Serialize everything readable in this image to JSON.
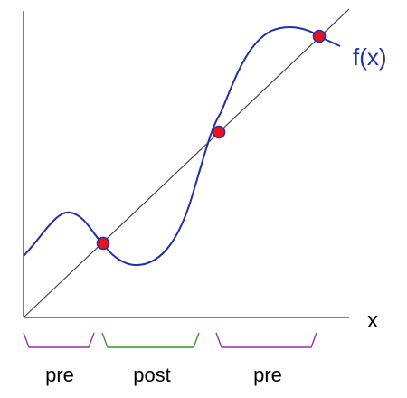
{
  "labels": {
    "function": "f(x)",
    "x_axis": "x"
  },
  "regions": [
    {
      "label": "pre",
      "color": "#9b2fae"
    },
    {
      "label": "post",
      "color": "#2e9b2e"
    },
    {
      "label": "pre",
      "color": "#9b2fae"
    }
  ],
  "colors": {
    "curve": "#1f2fa8",
    "diagonal": "#444444",
    "axes": "#555555",
    "fixed_point_fill": "#e8141c",
    "fixed_point_stroke": "#2a2ab0"
  }
}
